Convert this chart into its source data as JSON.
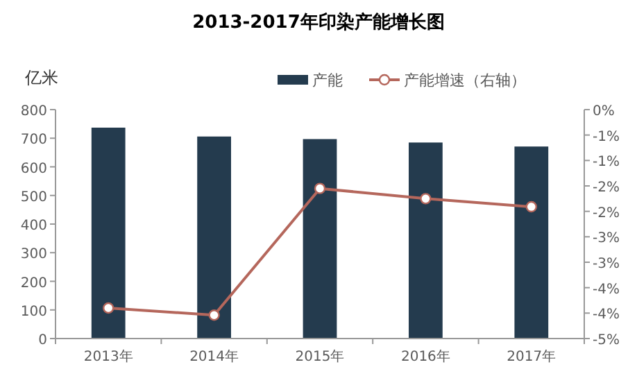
{
  "chart_data": {
    "type": "bar",
    "title": "2013-2017年印染产能增长图",
    "ylabel": "亿米",
    "categories": [
      "2013年",
      "2014年",
      "2015年",
      "2016年",
      "2017年"
    ],
    "series": [
      {
        "name": "产能",
        "color": "#243b4e",
        "values": [
          737,
          706,
          697,
          685,
          671
        ]
      },
      {
        "name": "产能增速（右轴）",
        "type": "line",
        "axis": "y2",
        "color": "#b5675c",
        "values": [
          -3.9,
          -4.04,
          -1.55,
          -1.75,
          -1.91
        ]
      }
    ],
    "ylim": [
      0,
      800
    ],
    "yticks": [
      0,
      100,
      200,
      300,
      400,
      500,
      600,
      700,
      800
    ],
    "y2lim": [
      -4.5,
      0
    ],
    "y2ticks": [
      {
        "value": 0,
        "label": "0%"
      },
      {
        "value": -0.5,
        "label": "-1%"
      },
      {
        "value": -1,
        "label": "-1%"
      },
      {
        "value": -1.5,
        "label": "-2%"
      },
      {
        "value": -2,
        "label": "-2%"
      },
      {
        "value": -2.5,
        "label": "-3%"
      },
      {
        "value": -3,
        "label": "-3%"
      },
      {
        "value": -3.5,
        "label": "-4%"
      },
      {
        "value": -4,
        "label": "-4%"
      },
      {
        "value": -4.5,
        "label": "-5%"
      }
    ],
    "grid": false,
    "legend": "top",
    "marker": "circle"
  }
}
